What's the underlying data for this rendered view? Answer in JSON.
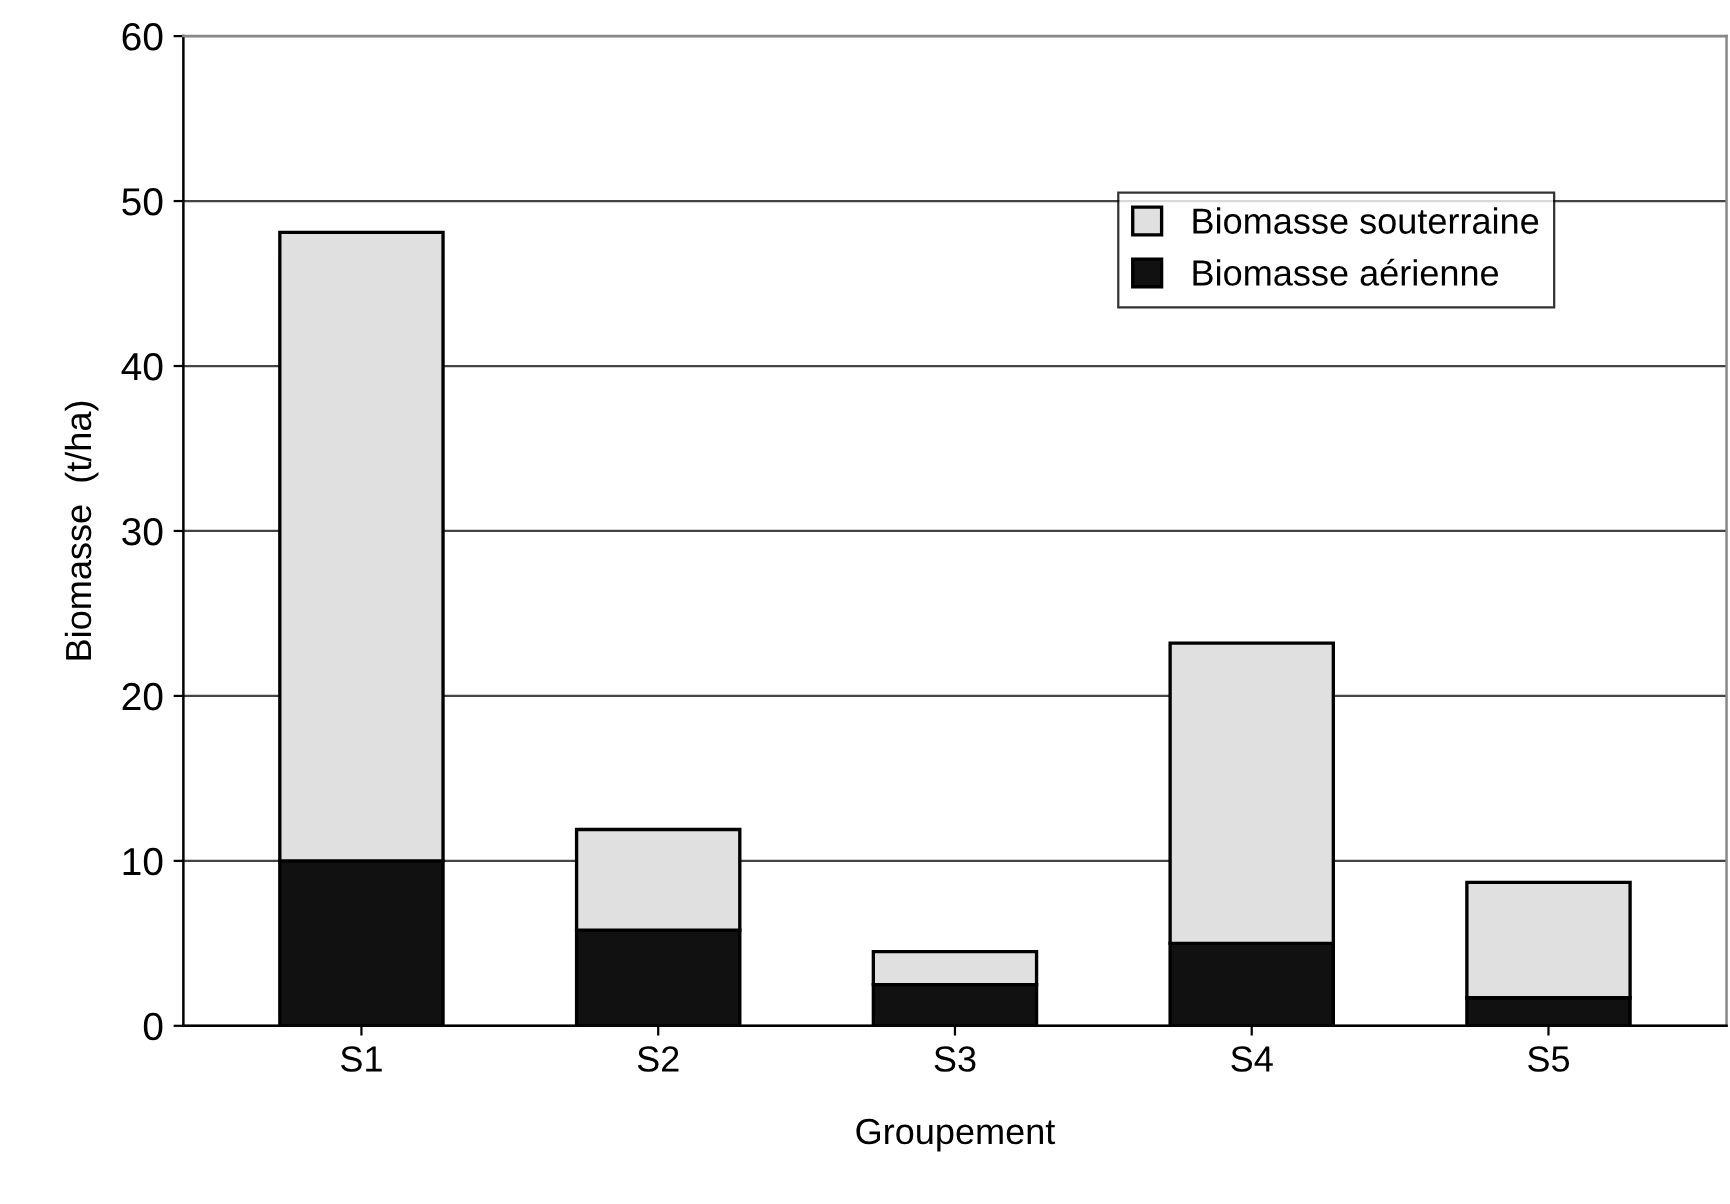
{
  "chart_data": {
    "type": "bar",
    "stacked": true,
    "xlabel": "Groupement",
    "ylabel": "Biomasse  (t/ha)",
    "categories": [
      "S1",
      "S2",
      "S3",
      "S4",
      "S5"
    ],
    "series": [
      {
        "name": "Biomasse aérienne",
        "color": "#111111",
        "values": [
          10.0,
          5.8,
          2.5,
          5.0,
          1.7
        ]
      },
      {
        "name": "Biomasse souterraine",
        "color": "#e0e0e0",
        "values": [
          38.1,
          6.1,
          2.0,
          18.2,
          7.0
        ]
      }
    ],
    "ylim": [
      0,
      60
    ],
    "yticks": [
      0,
      10,
      20,
      30,
      40,
      50,
      60
    ],
    "grid": "y",
    "legend": "top right"
  }
}
